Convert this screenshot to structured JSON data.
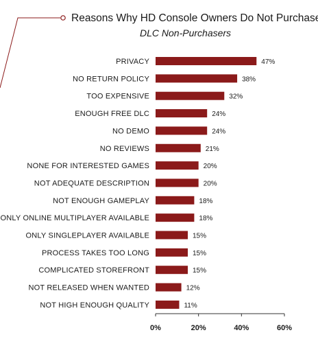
{
  "chart_data": {
    "type": "bar",
    "orientation": "horizontal",
    "title": "Reasons Why HD Console Owners Do Not Purchase DLC",
    "subtitle": "DLC Non-Purchasers",
    "categories": [
      "PRIVACY",
      "NO RETURN POLICY",
      "TOO EXPENSIVE",
      "ENOUGH FREE DLC",
      "NO DEMO",
      "NO REVIEWS",
      "NONE FOR INTERESTED GAMES",
      "NOT ADEQUATE DESCRIPTION",
      "NOT ENOUGH GAMEPLAY",
      "ONLY ONLINE MULTIPLAYER AVAILABLE",
      "ONLY SINGLEPLAYER AVAILABLE",
      "PROCESS TAKES TOO LONG",
      "COMPLICATED STOREFRONT",
      "NOT RELEASED WHEN WANTED",
      "NOT HIGH ENOUGH QUALITY"
    ],
    "values": [
      47,
      38,
      32,
      24,
      24,
      21,
      20,
      20,
      18,
      18,
      15,
      15,
      15,
      12,
      11
    ],
    "value_labels": [
      "47%",
      "38%",
      "32%",
      "24%",
      "24%",
      "21%",
      "20%",
      "20%",
      "18%",
      "18%",
      "15%",
      "15%",
      "15%",
      "12%",
      "11%"
    ],
    "xlim": [
      0,
      60
    ],
    "xticks": [
      0,
      20,
      40,
      60
    ],
    "xtick_labels": [
      "0%",
      "20%",
      "40%",
      "60%"
    ],
    "bar_color": "#8b1a1a",
    "grid": false,
    "legend": "none"
  }
}
